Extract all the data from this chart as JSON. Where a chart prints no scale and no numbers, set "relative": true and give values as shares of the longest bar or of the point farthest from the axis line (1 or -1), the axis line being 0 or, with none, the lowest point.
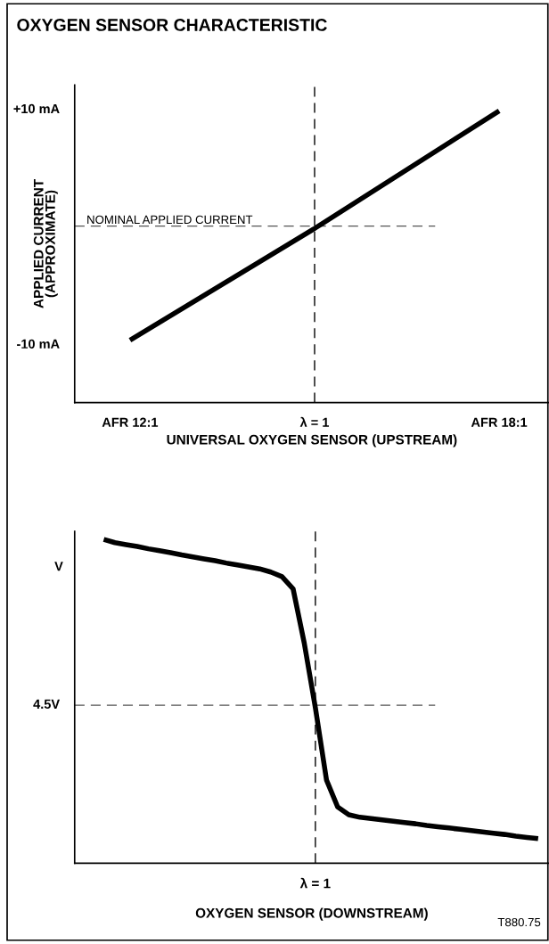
{
  "chart_data": [
    {
      "type": "line",
      "title": "OXYGEN SENSOR CHARACTERISTIC",
      "xlabel": "UNIVERSAL OXYGEN SENSOR (UPSTREAM)",
      "ylabel": "APPLIED CURRENT\n(APPROXIMATE)",
      "categories": [
        "AFR 12:1",
        "λ = 1",
        "AFR 18:1"
      ],
      "series": [
        {
          "color": "#000000",
          "values": [
            -9.7,
            -0.2,
            9.8
          ]
        }
      ],
      "ylim": [
        -15,
        12
      ],
      "yticks": [
        {
          "value": -10,
          "label": "-10 mA"
        },
        {
          "value": 10,
          "label": "+10 mA"
        }
      ],
      "ref_lines": [
        {
          "axis": "y",
          "value": 0,
          "label": "NOMINAL APPLIED CURRENT",
          "color": "#555555",
          "line_style": "dashed"
        },
        {
          "axis": "x",
          "value": "λ = 1",
          "color": "#000000",
          "line_style": "dashed"
        }
      ]
    },
    {
      "type": "line",
      "xlabel": "OXYGEN SENSOR (DOWNSTREAM)",
      "relative": true,
      "categories": [
        null,
        null,
        null,
        null,
        null,
        null,
        null,
        null,
        null,
        null,
        null,
        null,
        null,
        null,
        null,
        null,
        null,
        null,
        null,
        null,
        null,
        null,
        null,
        null,
        null,
        null,
        null,
        null,
        null,
        null,
        null,
        null,
        null,
        null,
        null,
        null,
        null,
        null,
        null,
        null
      ],
      "series": [
        {
          "color": "#000000",
          "values": [
            1,
            0.99,
            0.984,
            0.978,
            0.971,
            0.965,
            0.959,
            0.952,
            0.946,
            0.94,
            0.934,
            0.927,
            0.921,
            0.915,
            0.909,
            0.899,
            0.885,
            0.847,
            0.68,
            0.48,
            0.257,
            0.174,
            0.15,
            0.142,
            0.138,
            0.134,
            0.13,
            0.126,
            0.122,
            0.117,
            0.113,
            0.109,
            0.105,
            0.101,
            0.097,
            0.093,
            0.089,
            0.084,
            0.08,
            0.076
          ]
        }
      ],
      "ref_lines": [
        {
          "axis": "y",
          "value": 0.488,
          "label": "4.5V",
          "color": "#555555",
          "line_style": "dashed"
        }
      ],
      "annotations": [
        "λ = 1",
        "V",
        "T880.75"
      ]
    }
  ]
}
